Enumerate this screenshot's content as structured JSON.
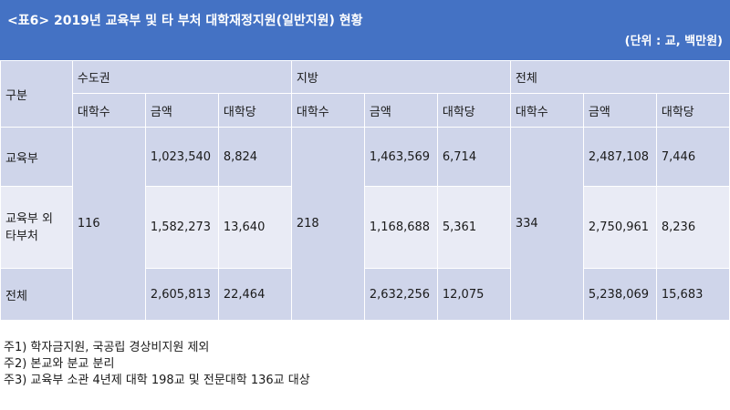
{
  "title": "<표6> 2019년 교육부 및 타 부처 대학재정지원(일반지원) 현황",
  "unit": "(단위 : 교, 백만원)",
  "headers": {
    "gubun": "구분",
    "groups": [
      "수도권",
      "지방",
      "전체"
    ],
    "sub": [
      "대학수",
      "금액",
      "대학당"
    ]
  },
  "rows": [
    {
      "label": "교육부",
      "values": [
        "1,023,540",
        "8,824",
        "1,463,569",
        "6,714",
        "2,487,108",
        "7,446"
      ]
    },
    {
      "label": "교육부 외 타부처",
      "values": [
        "1,582,273",
        "13,640",
        "1,168,688",
        "5,361",
        "2,750,961",
        "8,236"
      ]
    },
    {
      "label": "전체",
      "values": [
        "2,605,813",
        "22,464",
        "2,632,256",
        "12,075",
        "5,238,069",
        "15,683"
      ]
    }
  ],
  "counts": [
    "116",
    "218",
    "334"
  ],
  "footnotes": [
    "주1) 학자금지원, 국공립 경상비지원 제외",
    "주2) 본교와 분교 분리",
    "주3) 교육부 소관 4년제 대학 198교 및 전문대학 136교 대상"
  ]
}
